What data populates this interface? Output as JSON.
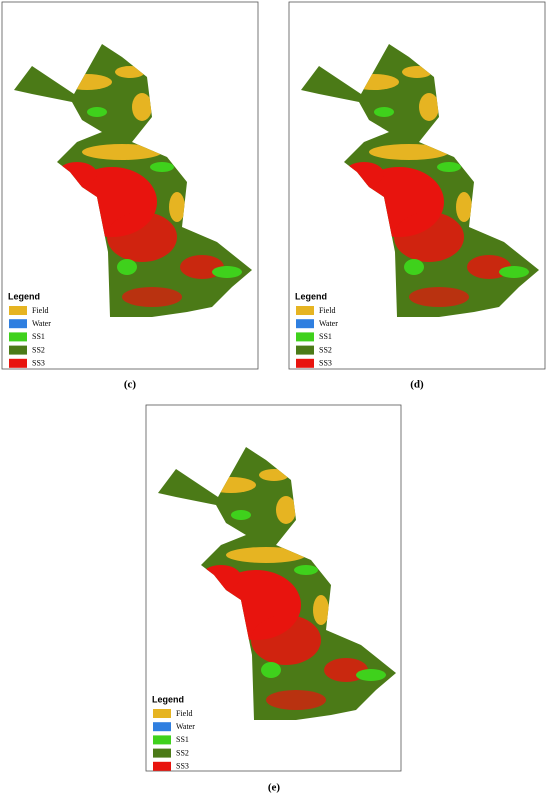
{
  "panels": [
    {
      "label": "(c)",
      "legend": {
        "title": "Legend",
        "items": [
          {
            "name": "Field",
            "color": "#e6b422"
          },
          {
            "name": "Water",
            "color": "#2f7fe0"
          },
          {
            "name": "SS1",
            "color": "#3fd11c"
          },
          {
            "name": "SS2",
            "color": "#4b7a17"
          },
          {
            "name": "SS3",
            "color": "#e8140e"
          }
        ]
      }
    },
    {
      "label": "(d)",
      "legend": {
        "title": "Legend",
        "items": [
          {
            "name": "Field",
            "color": "#e6b422"
          },
          {
            "name": "Water",
            "color": "#2f7fe0"
          },
          {
            "name": "SS1",
            "color": "#3fd11c"
          },
          {
            "name": "SS2",
            "color": "#4b7a17"
          },
          {
            "name": "SS3",
            "color": "#e8140e"
          }
        ]
      }
    },
    {
      "label": "(e)",
      "legend": {
        "title": "Legend",
        "items": [
          {
            "name": "Field",
            "color": "#e6b422"
          },
          {
            "name": "Water",
            "color": "#2f7fe0"
          },
          {
            "name": "SS1",
            "color": "#3fd11c"
          },
          {
            "name": "SS2",
            "color": "#4b7a17"
          },
          {
            "name": "SS3",
            "color": "#e8140e"
          }
        ]
      }
    }
  ]
}
